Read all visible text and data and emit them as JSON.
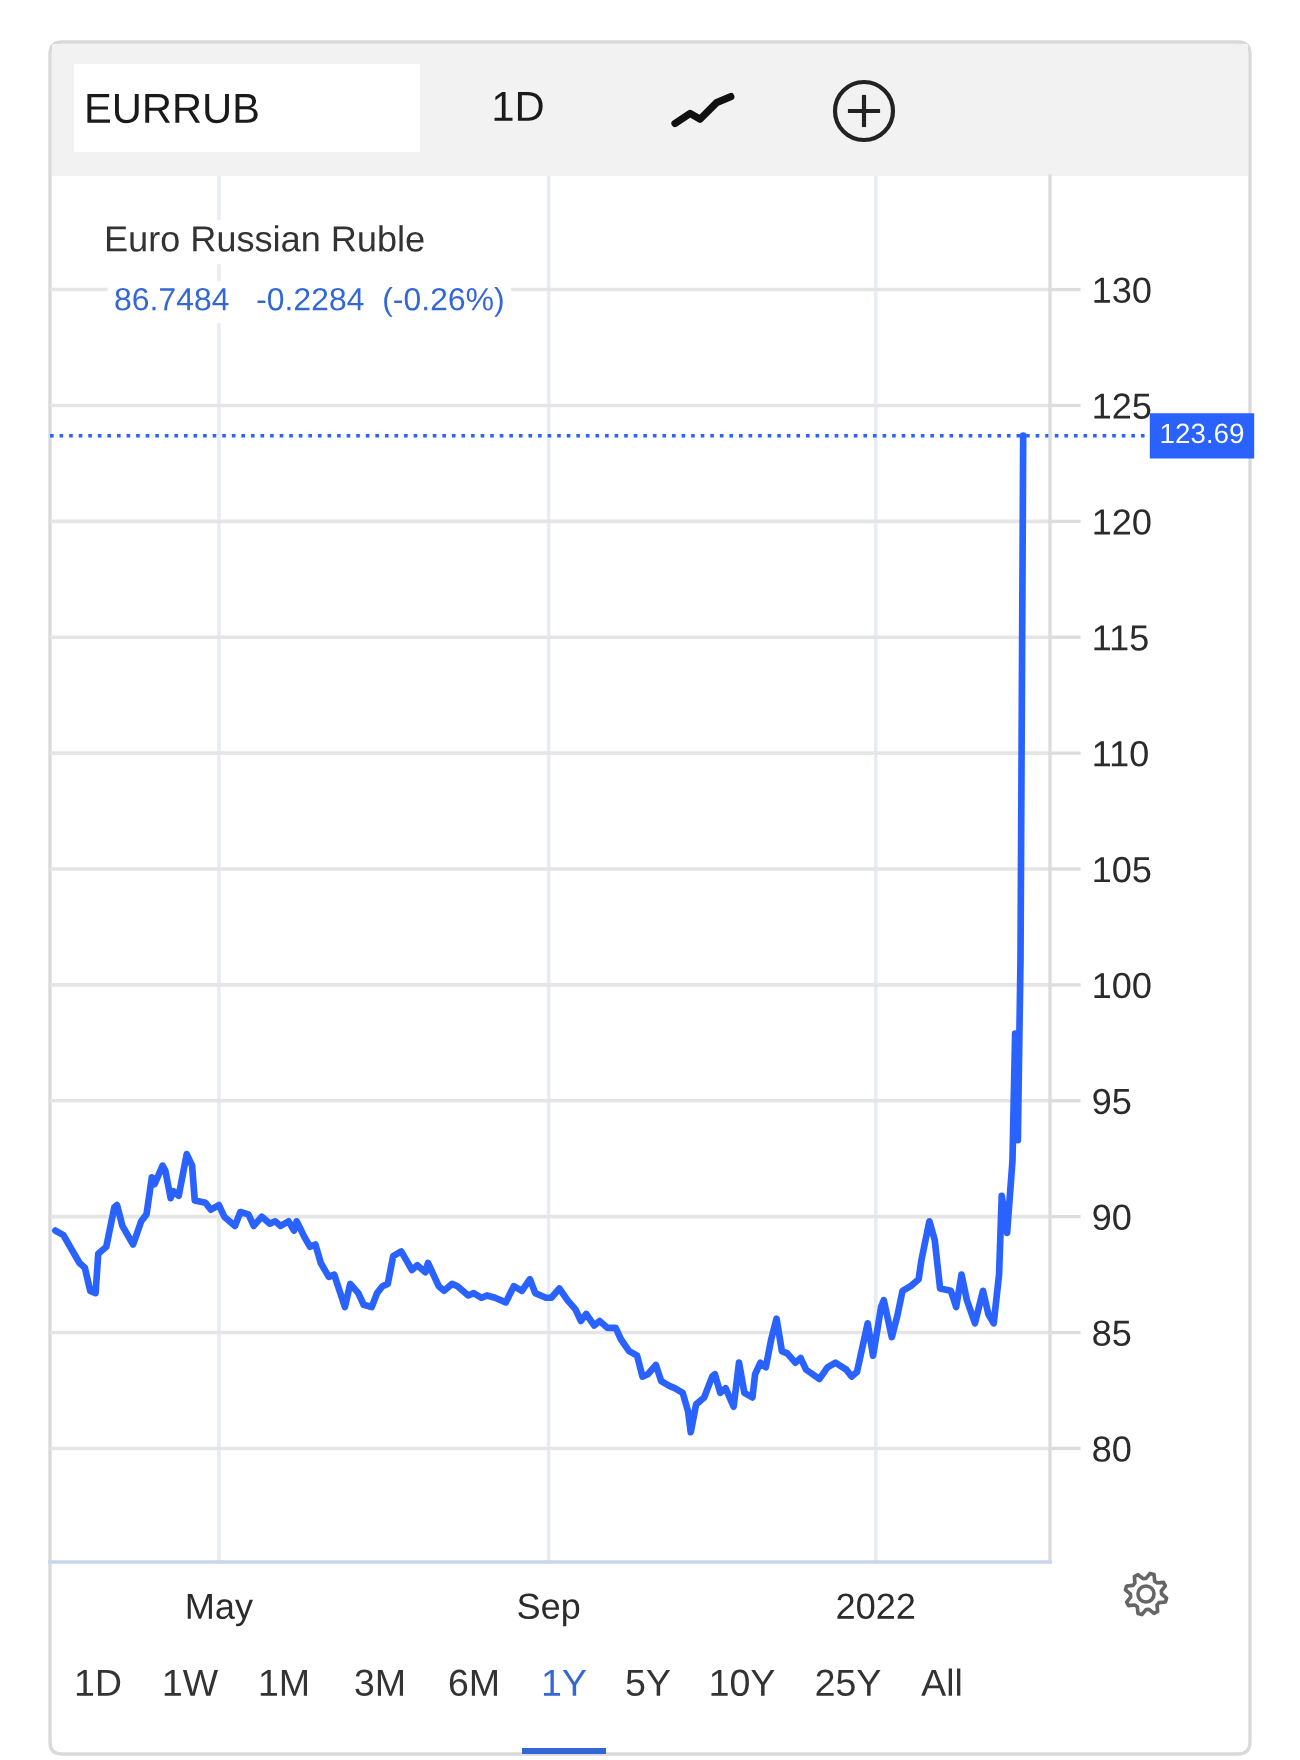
{
  "chart_data": {
    "type": "line",
    "title": "EURRUB",
    "subtitle": "Euro Russian Ruble",
    "annotations": [
      "86.7484   -0.2284  (-0.26%)",
      "1D",
      "1D",
      "1W",
      "1M",
      "3M",
      "6M",
      "1Y",
      "5Y",
      "10Y",
      "25Y",
      "All"
    ],
    "x": [
      "2021-03-01",
      "2021-03-04",
      "2021-03-08",
      "2021-03-10",
      "2021-03-12",
      "2021-03-14",
      "2021-03-16",
      "2021-03-17",
      "2021-03-20",
      "2021-03-23",
      "2021-03-24",
      "2021-03-26",
      "2021-03-30",
      "2021-04-02",
      "2021-04-04",
      "2021-04-06",
      "2021-04-07",
      "2021-04-10",
      "2021-04-11",
      "2021-04-13",
      "2021-04-14",
      "2021-04-16",
      "2021-04-19",
      "2021-04-21",
      "2021-04-22",
      "2021-04-26",
      "2021-04-28",
      "2021-05-01",
      "2021-05-03",
      "2021-05-07",
      "2021-05-09",
      "2021-05-12",
      "2021-05-14",
      "2021-05-17",
      "2021-05-20",
      "2021-05-22",
      "2021-05-24",
      "2021-05-27",
      "2021-05-29",
      "2021-05-30",
      "2021-06-02",
      "2021-06-04",
      "2021-06-06",
      "2021-06-08",
      "2021-06-11",
      "2021-06-13",
      "2021-06-15",
      "2021-06-17",
      "2021-06-19",
      "2021-06-22",
      "2021-06-24",
      "2021-06-27",
      "2021-06-29",
      "2021-07-01",
      "2021-07-03",
      "2021-07-05",
      "2021-07-08",
      "2021-07-10",
      "2021-07-12",
      "2021-07-14",
      "2021-07-17",
      "2021-07-18",
      "2021-07-22",
      "2021-07-24",
      "2021-07-27",
      "2021-07-29",
      "2021-08-02",
      "2021-08-04",
      "2021-08-07",
      "2021-08-09",
      "2021-08-12",
      "2021-08-16",
      "2021-08-19",
      "2021-08-22",
      "2021-08-25",
      "2021-08-27",
      "2021-08-31",
      "2021-09-02",
      "2021-09-05",
      "2021-09-08",
      "2021-09-11",
      "2021-09-13",
      "2021-09-15",
      "2021-09-18",
      "2021-09-20",
      "2021-09-23",
      "2021-09-26",
      "2021-09-28",
      "2021-10-01",
      "2021-10-04",
      "2021-10-06",
      "2021-10-08",
      "2021-10-11",
      "2021-10-13",
      "2021-10-16",
      "2021-10-18",
      "2021-10-21",
      "2021-10-23",
      "2021-10-24",
      "2021-10-26",
      "2021-10-29",
      "2021-11-01",
      "2021-11-02",
      "2021-11-04",
      "2021-11-06",
      "2021-11-09",
      "2021-11-11",
      "2021-11-13",
      "2021-11-16",
      "2021-11-17",
      "2021-11-19",
      "2021-11-21",
      "2021-11-23",
      "2021-11-25",
      "2021-11-27",
      "2021-11-29",
      "2021-12-02",
      "2021-12-04",
      "2021-12-06",
      "2021-12-11",
      "2021-12-14",
      "2021-12-17",
      "2021-12-21",
      "2021-12-23",
      "2021-12-25",
      "2021-12-29",
      "2021-12-31",
      "2022-01-03",
      "2022-01-04",
      "2022-01-07",
      "2022-01-09",
      "2022-01-11",
      "2022-01-14",
      "2022-01-17",
      "2022-01-18",
      "2022-01-21",
      "2022-01-23",
      "2022-01-25",
      "2022-01-29",
      "2022-01-31",
      "2022-02-02",
      "2022-02-04",
      "2022-02-07",
      "2022-02-10",
      "2022-02-12",
      "2022-02-14",
      "2022-02-16",
      "2022-02-17",
      "2022-02-19",
      "2022-02-21",
      "2022-02-22",
      "2022-02-23",
      "2022-02-24",
      "2022-02-25"
    ],
    "series": [
      {
        "color": "#2962ff",
        "values": [
          89.4,
          89.2,
          88.4,
          88.0,
          87.8,
          86.8,
          86.7,
          88.4,
          88.7,
          90.4,
          90.5,
          89.6,
          88.8,
          89.8,
          90.1,
          91.7,
          91.4,
          92.2,
          92.0,
          90.8,
          91.1,
          90.9,
          92.7,
          92.2,
          90.7,
          90.6,
          90.3,
          90.5,
          90.0,
          89.6,
          90.2,
          90.1,
          89.6,
          90.0,
          89.7,
          89.8,
          89.6,
          89.8,
          89.4,
          89.8,
          89.1,
          88.7,
          88.8,
          88.0,
          87.4,
          87.5,
          86.8,
          86.1,
          87.1,
          86.7,
          86.2,
          86.1,
          86.7,
          87.0,
          87.1,
          88.3,
          88.5,
          88.1,
          87.7,
          87.9,
          87.6,
          88.0,
          87.0,
          86.8,
          87.1,
          87.0,
          86.6,
          86.7,
          86.5,
          86.6,
          86.5,
          86.3,
          87.0,
          86.8,
          87.3,
          86.7,
          86.5,
          86.5,
          86.9,
          86.4,
          86.0,
          85.5,
          85.8,
          85.3,
          85.5,
          85.2,
          85.2,
          84.7,
          84.2,
          84.0,
          83.1,
          83.2,
          83.6,
          82.9,
          82.7,
          82.6,
          82.4,
          81.6,
          80.7,
          81.9,
          82.2,
          83.1,
          83.2,
          82.4,
          82.6,
          81.8,
          83.7,
          82.4,
          82.2,
          83.2,
          83.7,
          83.5,
          84.7,
          85.6,
          84.2,
          84.1,
          83.7,
          83.9,
          83.4,
          83.0,
          83.5,
          83.7,
          83.4,
          83.1,
          83.3,
          85.4,
          84.0,
          86.1,
          86.4,
          84.8,
          85.7,
          86.8,
          87.0,
          87.3,
          88.1,
          89.8,
          89.0,
          86.9,
          86.8,
          86.1,
          87.5,
          86.4,
          85.4,
          86.8,
          85.8,
          85.4,
          87.5,
          90.9,
          89.3,
          92.4,
          97.9,
          93.3,
          101.1,
          123.7
        ]
      }
    ],
    "xlim": [
      "2021-02-27",
      "2022-03-07"
    ],
    "xticks": [
      {
        "value": "2021-05-01",
        "label": "May"
      },
      {
        "value": "2021-09-01",
        "label": "Sep"
      },
      {
        "value": "2022-01-01",
        "label": "2022"
      }
    ],
    "ylim": [
      75.1,
      134.9
    ],
    "yticks": [
      80,
      85,
      90,
      95,
      100,
      105,
      110,
      115,
      120,
      125,
      130
    ],
    "ref_lines": [
      {
        "axis": "y",
        "value": 123.69,
        "label": "123.69",
        "color": "#2962ff",
        "line_style": "dotted"
      }
    ],
    "grid": true,
    "marker": "none",
    "line_style": "solid"
  }
}
